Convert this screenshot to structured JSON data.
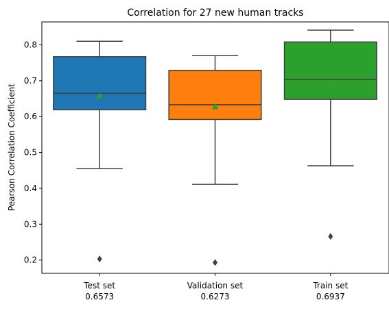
{
  "chart_data": {
    "type": "box",
    "title": "Correlation for 27 new human tracks",
    "xlabel": "",
    "ylabel": "Pearson Correlation Coefficient",
    "ylim": [
      0.163,
      0.864
    ],
    "yticks": [
      "0.2",
      "0.3",
      "0.4",
      "0.5",
      "0.6",
      "0.7",
      "0.8"
    ],
    "grid": false,
    "series": [
      {
        "name": "Test set",
        "sublabel": "0.6573",
        "color": "#1f77b4",
        "whisker_low": 0.455,
        "q1": 0.619,
        "median": 0.665,
        "q3": 0.767,
        "whisker_high": 0.81,
        "mean": 0.6573,
        "outliers": [
          0.203
        ]
      },
      {
        "name": "Validation set",
        "sublabel": "0.6273",
        "color": "#ff7f0e",
        "whisker_low": 0.411,
        "q1": 0.592,
        "median": 0.633,
        "q3": 0.729,
        "whisker_high": 0.77,
        "mean": 0.6273,
        "outliers": [
          0.193
        ]
      },
      {
        "name": "Train set",
        "sublabel": "0.6937",
        "color": "#2ca02c",
        "whisker_low": 0.463,
        "q1": 0.648,
        "median": 0.704,
        "q3": 0.808,
        "whisker_high": 0.841,
        "mean": 0.6937,
        "outliers": [
          0.266
        ]
      }
    ],
    "mean_marker_color": "#2ca02c",
    "line_color": "#3f3f3f"
  }
}
